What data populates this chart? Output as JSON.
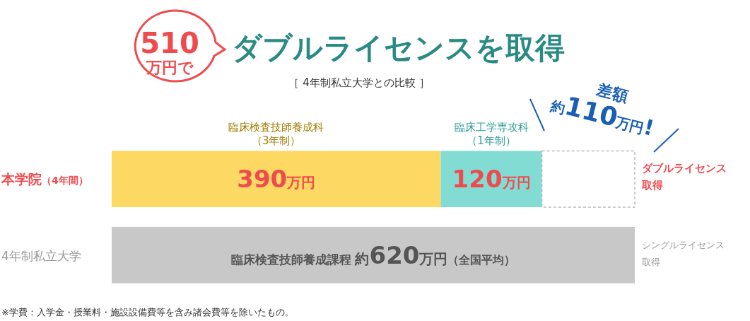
{
  "chart_data": {
    "type": "bar",
    "orientation": "horizontal",
    "stacked": true,
    "title": "ダブルライセンスを取得",
    "subtitle": "［ 4年制私立大学との比較 ］",
    "categories": [
      "本学院（4年間）",
      "4年制私立大学"
    ],
    "series": [
      {
        "name": "臨床検査技師養成科（3年制）",
        "color": "#fdd862",
        "values": [
          390,
          null
        ],
        "value_labels": [
          "390万円",
          null
        ]
      },
      {
        "name": "臨床工学専攻科（1年制）",
        "color": "#82dcd3",
        "values": [
          120,
          null
        ],
        "value_labels": [
          "120万円",
          null
        ]
      },
      {
        "color": "#ffffff",
        "line_style": "dashed",
        "values": [
          110,
          null
        ],
        "value_labels": [
          null,
          null
        ]
      },
      {
        "color": "#c8c8c8",
        "values": [
          null,
          620
        ],
        "value_labels": [
          null,
          "臨床検査技師養成課程 約620万円（全国平均）"
        ]
      }
    ],
    "annotations": [
      "510万円で",
      "差額約110万円!",
      "ダブルライセンス取得",
      "シングルライセンス取得",
      "※学費：入学金・授業料・施設設備費等を含み諸会費等を除いたもの。"
    ]
  }
}
